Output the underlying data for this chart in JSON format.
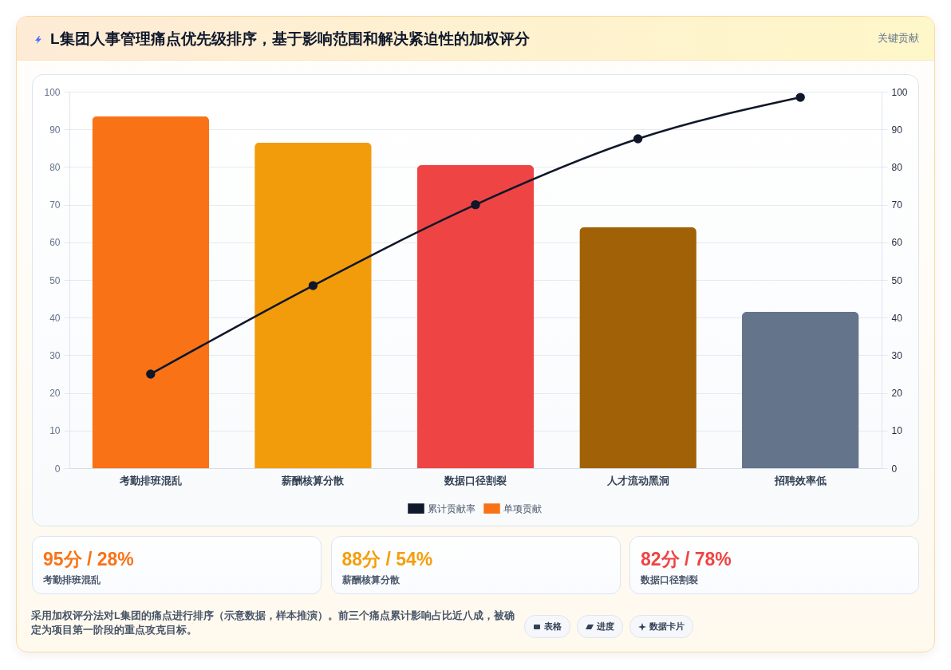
{
  "chart_data": [
    {
      "type": "bar",
      "title": "L集团人事管理痛点优先级排序，基于影响范围和解决紧迫性的加权评分",
      "categories": [
        "考勤排班混乱",
        "薪酬核算分散",
        "数据口径割裂",
        "人才流动黑洞",
        "招聘效率低"
      ],
      "series": [
        {
          "name": "累计贡献率",
          "type": "line",
          "axis": "y2",
          "color": "#0f172a",
          "values": [
            25,
            48.5,
            70,
            87.5,
            98.5
          ]
        },
        {
          "name": "单项贡献",
          "type": "bar",
          "colors": [
            "#f97316",
            "#f39c0b",
            "#ef4444",
            "#a16207",
            "#64748b"
          ],
          "values": [
            93.5,
            86.5,
            80.5,
            64,
            41.5
          ]
        }
      ],
      "ylim": [
        0,
        100
      ],
      "yticks": [
        0,
        10,
        20,
        30,
        40,
        50,
        60,
        70,
        80,
        90,
        100
      ],
      "y2lim": [
        0,
        100
      ],
      "y2ticks": [
        0,
        10,
        20,
        30,
        40,
        50,
        60,
        70,
        80,
        90,
        100
      ],
      "grid": "y",
      "legend": "bottom",
      "marker": "circle",
      "annotations": [
        "关键贡献",
        "采用加权评分法对L集团的痛点进行排序（示意数据，样本推演）。前三个痛点累计影响占比近八成，被确定为项目第一阶段的重点攻克目标。",
        "表格",
        "进度",
        "数据卡片"
      ]
    },
    {
      "type": "other",
      "title": "95分 / 28%",
      "subtitle": "考勤排班混乱",
      "color": "#f97316"
    },
    {
      "type": "other",
      "title": "88分 / 54%",
      "subtitle": "薪酬核算分散",
      "color": "#f59e0b"
    },
    {
      "type": "other",
      "title": "82分 / 78%",
      "subtitle": "数据口径割裂",
      "color": "#ef4444"
    }
  ]
}
